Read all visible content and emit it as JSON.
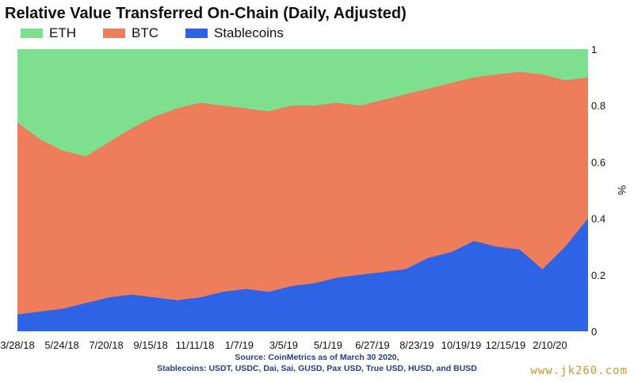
{
  "chart_data": {
    "type": "area",
    "stacked": true,
    "title": "Relative Value Transferred On-Chain (Daily, Adjusted)",
    "ylabel": "%",
    "ylim": [
      0,
      1
    ],
    "yticks": [
      "0",
      "0.2",
      "0.4",
      "0.6",
      "0.8",
      "1"
    ],
    "legend_position": "top-left",
    "x_tick_labels": [
      "3/28/18",
      "5/24/18",
      "7/20/18",
      "9/15/18",
      "11/11/18",
      "1/7/19",
      "3/5/19",
      "5/1/19",
      "6/27/19",
      "8/23/19",
      "10/19/19",
      "12/15/19",
      "2/10/20"
    ],
    "x_start": "2018-03-28",
    "x_end": "2020-03-30",
    "series": [
      {
        "name": "ETH",
        "color": "#7ee08f",
        "share_top": [
          1,
          1,
          1,
          1,
          1,
          1,
          1,
          1,
          1,
          1,
          1,
          1,
          1,
          1,
          1,
          1,
          1,
          1,
          1,
          1,
          1,
          1,
          1,
          1,
          1,
          1
        ]
      },
      {
        "name": "BTC",
        "color": "#ee7d5b",
        "share_top": [
          0.74,
          0.68,
          0.64,
          0.62,
          0.67,
          0.72,
          0.76,
          0.79,
          0.81,
          0.8,
          0.79,
          0.78,
          0.8,
          0.8,
          0.81,
          0.8,
          0.82,
          0.84,
          0.86,
          0.88,
          0.9,
          0.91,
          0.92,
          0.91,
          0.89,
          0.9
        ]
      },
      {
        "name": "Stablecoins",
        "color": "#2f63e6",
        "share_top": [
          0.06,
          0.07,
          0.08,
          0.1,
          0.12,
          0.13,
          0.12,
          0.11,
          0.12,
          0.14,
          0.15,
          0.14,
          0.16,
          0.17,
          0.19,
          0.2,
          0.21,
          0.22,
          0.26,
          0.28,
          0.32,
          0.3,
          0.29,
          0.22,
          0.3,
          0.4
        ]
      }
    ]
  },
  "legend": [
    {
      "label": "ETH",
      "color": "#7ee08f"
    },
    {
      "label": "BTC",
      "color": "#ee7d5b"
    },
    {
      "label": "Stablecoins",
      "color": "#2f63e6"
    }
  ],
  "source_line1": "Source: CoinMetrics as of March 30 2020,",
  "source_line2": "Stablecoins: USDT, USDC, Dai, Sai, GUSD, Pax USD, True USD, HUSD, and BUSD",
  "watermark": "www.jk260.com"
}
